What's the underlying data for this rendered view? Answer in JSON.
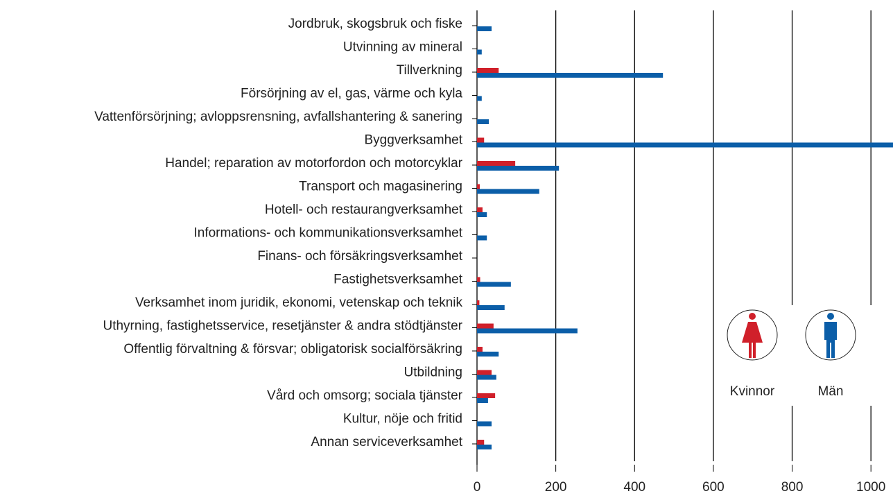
{
  "chart_data": {
    "type": "hbar",
    "categories": [
      "Jordbruk, skogsbruk och fiske",
      "Utvinning av mineral",
      "Tillverkning",
      "Försörjning av el, gas, värme och kyla",
      "Vattenförsörjning; avloppsrensning, avfallshantering & sanering",
      "Byggverksamhet",
      "Handel; reparation av motorfordon och motorcyklar",
      "Transport och magasinering",
      "Hotell- och restaurangverksamhet",
      "Informations- och kommunikationsverksamhet",
      "Finans- och försäkringsverksamhet",
      "Fastighetsverksamhet",
      "Verksamhet inom juridik, ekonomi, vetenskap och teknik",
      "Uthyrning, fastighetsservice, resetjänster & andra stödtjänster",
      "Offentlig förvaltning & försvar; obligatorisk socialförsäkring",
      "Utbildning",
      "Vård och omsorg; sociala tjänster",
      "Kultur, nöje och fritid",
      "Annan serviceverksamhet"
    ],
    "series": [
      {
        "name": "Kvinnor",
        "color": "#d0202a",
        "values": [
          0,
          0,
          55,
          0,
          0,
          18,
          97,
          7,
          14,
          0,
          0,
          8,
          6,
          42,
          14,
          37,
          46,
          0,
          18
        ]
      },
      {
        "name": "Män",
        "color": "#0b5ea8",
        "values": [
          37,
          12,
          472,
          12,
          30,
          1100,
          208,
          158,
          25,
          25,
          0,
          86,
          70,
          255,
          55,
          49,
          28,
          37,
          37
        ]
      }
    ],
    "xlim": [
      0,
      1056
    ],
    "xticks": [
      0,
      200,
      400,
      600,
      800,
      1000
    ],
    "grid": true
  }
}
